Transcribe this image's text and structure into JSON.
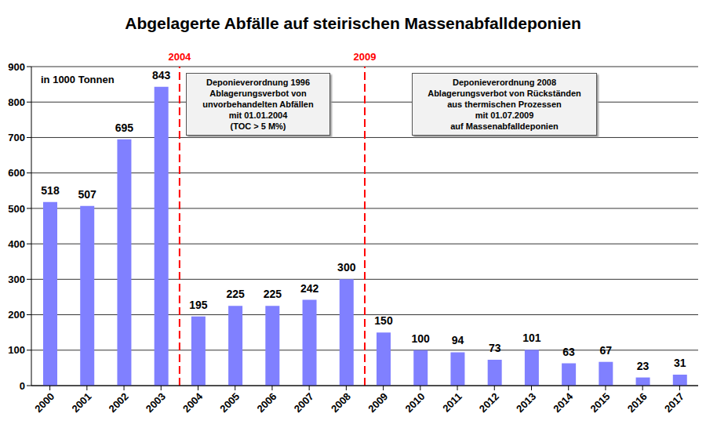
{
  "chart_data": {
    "type": "bar",
    "title": "Abgelagerte Abfälle auf steirischen Massenabfalldeponien",
    "unit_label": "in 1000 Tonnen",
    "categories": [
      "2000",
      "2001",
      "2002",
      "2003",
      "2004",
      "2005",
      "2006",
      "2007",
      "2008",
      "2009",
      "2010",
      "2011",
      "2012",
      "2013",
      "2014",
      "2015",
      "2016",
      "2017"
    ],
    "values": [
      518,
      507,
      695,
      843,
      195,
      225,
      225,
      242,
      300,
      150,
      100,
      94,
      73,
      101,
      63,
      67,
      23,
      31
    ],
    "color": "#8080ff",
    "ylim": [
      0,
      900
    ],
    "yticks": [
      0,
      100,
      200,
      300,
      400,
      500,
      600,
      700,
      800,
      900
    ],
    "grid": true,
    "data_labels": true,
    "annotations": [
      {
        "line_label": "2004",
        "color": "#ff0000",
        "box": [
          "Deponieverordnung 1996",
          "Ablagerungsverbot von",
          "unvorbehandelten Abfällen",
          "mit 01.01.2004",
          "(TOC > 5 M%)"
        ]
      },
      {
        "line_label": "2009",
        "color": "#ff0000",
        "box": [
          "Deponieverordnung 2008",
          "Ablagerungsverbot von Rückständen",
          "aus thermischen Prozessen",
          "mit 01.07.2009",
          "auf Massenabfalldeponien"
        ]
      }
    ]
  }
}
